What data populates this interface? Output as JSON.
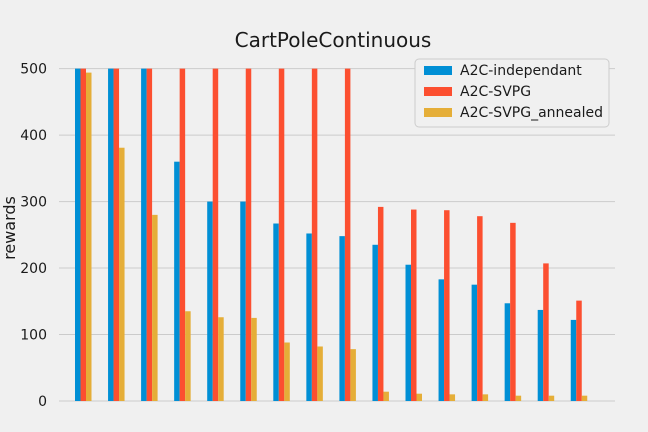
{
  "chart_data": {
    "type": "bar",
    "title": "CartPoleContinuous",
    "xlabel": "",
    "ylabel": "rewards",
    "ylim": [
      0,
      525
    ],
    "yticks": [
      0,
      100,
      200,
      300,
      400,
      500
    ],
    "grid": true,
    "legend_position": "top-right",
    "categories": [
      "",
      "",
      "",
      "",
      "",
      "",
      "",
      "",
      "",
      "",
      "",
      "",
      "",
      "",
      "",
      ""
    ],
    "series": [
      {
        "name": "A2C-independant",
        "color": "#008fd5",
        "values": [
          500,
          500,
          500,
          360,
          300,
          300,
          267,
          252,
          248,
          235,
          205,
          183,
          175,
          147,
          137,
          122
        ]
      },
      {
        "name": "A2C-SVPG",
        "color": "#fc4f30",
        "values": [
          500,
          500,
          500,
          500,
          500,
          500,
          500,
          500,
          500,
          292,
          288,
          287,
          278,
          268,
          207,
          151
        ]
      },
      {
        "name": "A2C-SVPG_annealed",
        "color": "#e5ae38",
        "values": [
          494,
          381,
          280,
          135,
          126,
          125,
          88,
          82,
          78,
          14,
          11,
          10,
          10,
          8,
          8,
          8
        ]
      }
    ]
  }
}
